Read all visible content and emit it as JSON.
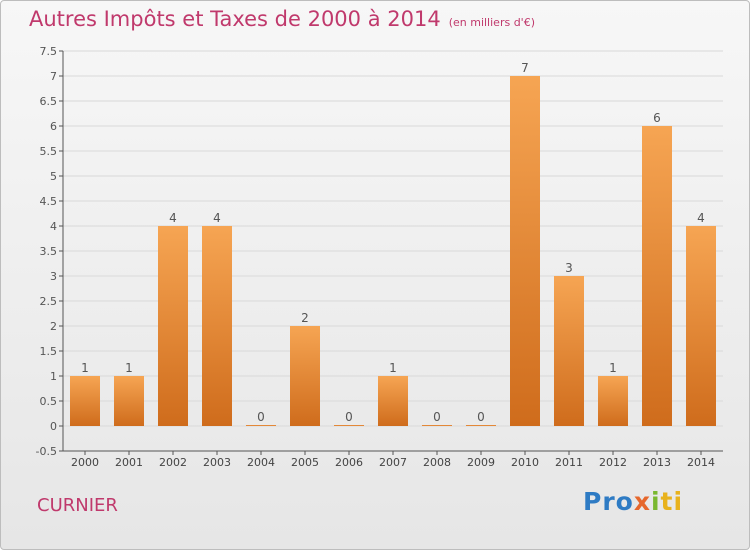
{
  "header": {
    "title": "Autres Impôts et Taxes de 2000 à 2014",
    "unit": "(en milliers d'€)"
  },
  "footer": {
    "commune": "CURNIER",
    "logo_parts": [
      "Pro",
      "x",
      "i",
      "ti"
    ]
  },
  "colors": {
    "title": "#c0396c",
    "bar_top": "#f6a553",
    "bar_bottom": "#cf6c1c",
    "grid": "#d9d9d9"
  },
  "chart_data": {
    "type": "bar",
    "categories": [
      "2000",
      "2001",
      "2002",
      "2003",
      "2004",
      "2005",
      "2006",
      "2007",
      "2008",
      "2009",
      "2010",
      "2011",
      "2012",
      "2013",
      "2014"
    ],
    "values": [
      1,
      1,
      4,
      4,
      0,
      2,
      0,
      1,
      0,
      0,
      7,
      3,
      1,
      6,
      4
    ],
    "data_labels": [
      "1",
      "1",
      "4",
      "4",
      "0",
      "2",
      "0",
      "1",
      "0",
      "0",
      "7",
      "3",
      "1",
      "6",
      "4"
    ],
    "yticks": [
      "-0.5",
      "0",
      "0.5",
      "1",
      "1.5",
      "2",
      "2.5",
      "3",
      "3.5",
      "4",
      "4.5",
      "5",
      "5.5",
      "6",
      "6.5",
      "7",
      "7.5"
    ],
    "title": "Autres Impôts et Taxes de 2000 à 2014",
    "xlabel": "",
    "ylabel": "",
    "ylim": [
      -0.5,
      7.5
    ],
    "grid": true,
    "legend": "none"
  }
}
